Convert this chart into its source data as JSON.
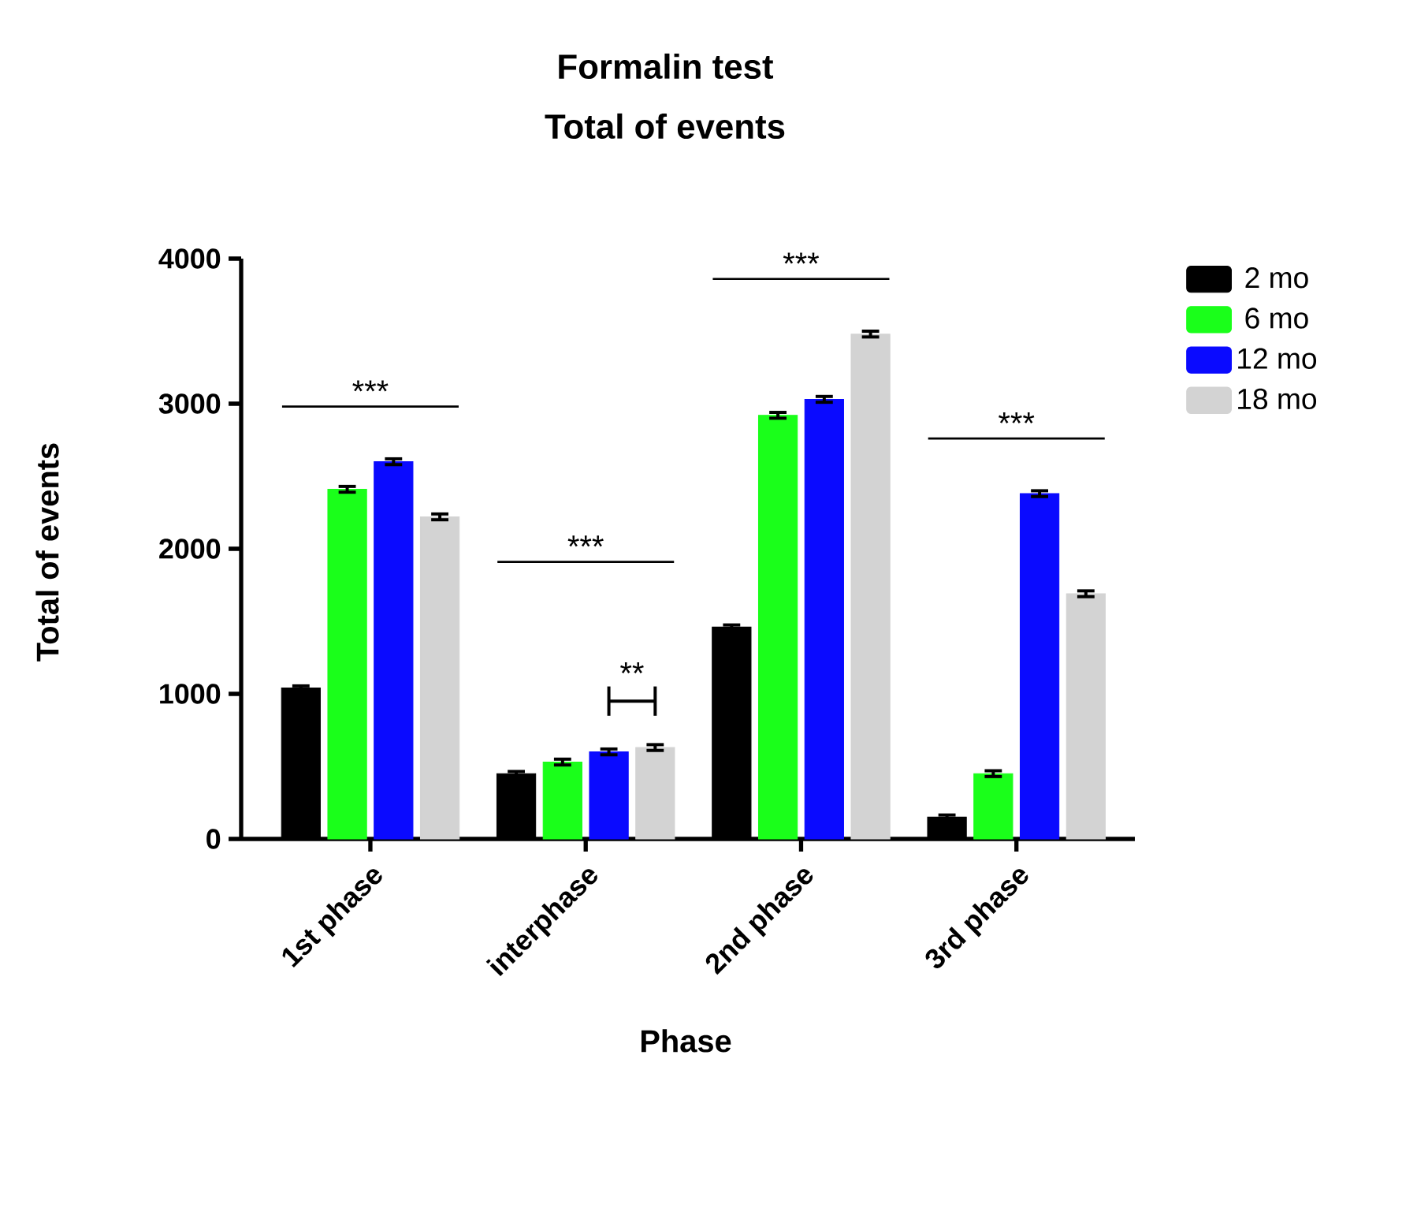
{
  "chart_data": {
    "type": "bar",
    "title": "Formalin test",
    "subtitle": "Total of events",
    "xlabel": "Phase",
    "ylabel": "Total of events",
    "categories": [
      "1st phase",
      "interphase",
      "2nd phase",
      "3rd phase"
    ],
    "series": [
      {
        "name": "2 mo",
        "color": "#000000",
        "values": [
          1040,
          450,
          1460,
          150
        ],
        "errors": [
          15,
          15,
          15,
          15
        ]
      },
      {
        "name": "6 mo",
        "color": "#1aff1a",
        "values": [
          2410,
          530,
          2920,
          450
        ],
        "errors": [
          20,
          20,
          20,
          20
        ]
      },
      {
        "name": "12 mo",
        "color": "#0a0aff",
        "values": [
          2600,
          600,
          3030,
          2380
        ],
        "errors": [
          20,
          20,
          20,
          20
        ]
      },
      {
        "name": "18 mo",
        "color": "#d3d3d3",
        "values": [
          2220,
          630,
          3480,
          1690
        ],
        "errors": [
          20,
          20,
          20,
          20
        ]
      }
    ],
    "ylim": [
      0,
      4000
    ],
    "yticks": [
      0,
      1000,
      2000,
      3000,
      4000
    ],
    "grid": false,
    "legend": "top right",
    "annotations": [
      "***",
      "***",
      "**",
      "***",
      "***"
    ]
  }
}
